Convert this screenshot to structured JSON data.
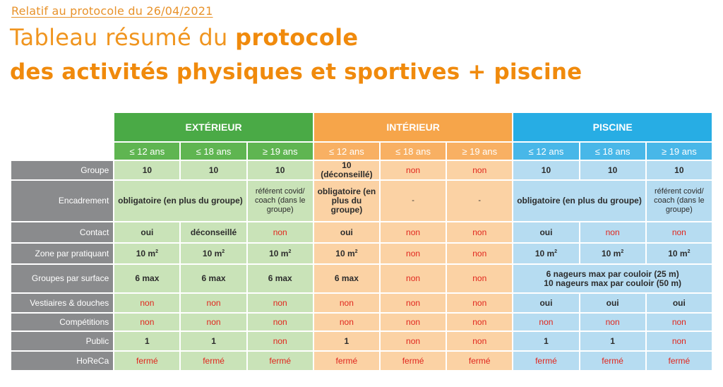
{
  "header": {
    "subtitle": "Relatif au protocole du 26/04/2021",
    "title_line1_plain": "Tableau résumé du ",
    "title_line1_bold": "protocole",
    "title_line2": "des activités physiques et sportives + piscine"
  },
  "groups": {
    "exterieur": "EXTÉRIEUR",
    "interieur": "INTÉRIEUR",
    "piscine": "PISCINE"
  },
  "ages": [
    "≤ 12 ans",
    "≤ 18 ans",
    "≥ 19 ans"
  ],
  "rows": {
    "groupe": {
      "label": "Groupe",
      "ext": [
        "10",
        "10",
        "10"
      ],
      "int": [
        "10 (déconseillé)",
        "non",
        "non"
      ],
      "pis": [
        "10",
        "10",
        "10"
      ]
    },
    "encadrement": {
      "label": "Encadrement",
      "ext_merged": "obligatoire  (en plus du groupe)",
      "ext_3": "référent covid/ coach (dans le groupe)",
      "int_1": "obligatoire  (en plus du groupe)",
      "int_2": "-",
      "int_3": "-",
      "pis_merged": "obligatoire  (en plus du groupe)",
      "pis_3": "référent covid/ coach (dans le groupe)"
    },
    "contact": {
      "label": "Contact",
      "ext": [
        "oui",
        "déconseillé",
        "non"
      ],
      "int": [
        "oui",
        "non",
        "non"
      ],
      "pis": [
        "oui",
        "non",
        "non"
      ]
    },
    "zone": {
      "label": "Zone par pratiquant",
      "ext": [
        "10 m",
        "10 m",
        "10 m"
      ],
      "int": [
        "10 m",
        "non",
        "non"
      ],
      "pis": [
        "10 m",
        "10 m",
        "10 m"
      ],
      "sup": "2"
    },
    "groupes_surface": {
      "label": "Groupes par surface",
      "ext": [
        "6 max",
        "6 max",
        "6 max"
      ],
      "int": [
        "6 max",
        "non",
        "non"
      ],
      "pis_line1": "6 nageurs max par couloir (25 m)",
      "pis_line2": "10 nageurs max par couloir (50 m)"
    },
    "vestiaires": {
      "label": "Vestiaires & douches",
      "ext": [
        "non",
        "non",
        "non"
      ],
      "int": [
        "non",
        "non",
        "non"
      ],
      "pis": [
        "oui",
        "oui",
        "oui"
      ]
    },
    "competitions": {
      "label": "Compétitions",
      "ext": [
        "non",
        "non",
        "non"
      ],
      "int": [
        "non",
        "non",
        "non"
      ],
      "pis": [
        "non",
        "non",
        "non"
      ]
    },
    "public": {
      "label": "Public",
      "ext": [
        "1",
        "1",
        "non"
      ],
      "int": [
        "1",
        "non",
        "non"
      ],
      "pis": [
        "1",
        "1",
        "non"
      ]
    },
    "horeca": {
      "label": "HoReCa",
      "ext": [
        "fermé",
        "fermé",
        "fermé"
      ],
      "int": [
        "fermé",
        "fermé",
        "fermé"
      ],
      "pis": [
        "fermé",
        "fermé",
        "fermé"
      ]
    }
  },
  "colors": {
    "title_orange": "#f08a0c",
    "green_header": "#4aaa46",
    "orange_header": "#f6a54a",
    "blue_header": "#27ade4",
    "negative_red": "#e0261d",
    "label_grey": "#8a8b8d"
  }
}
